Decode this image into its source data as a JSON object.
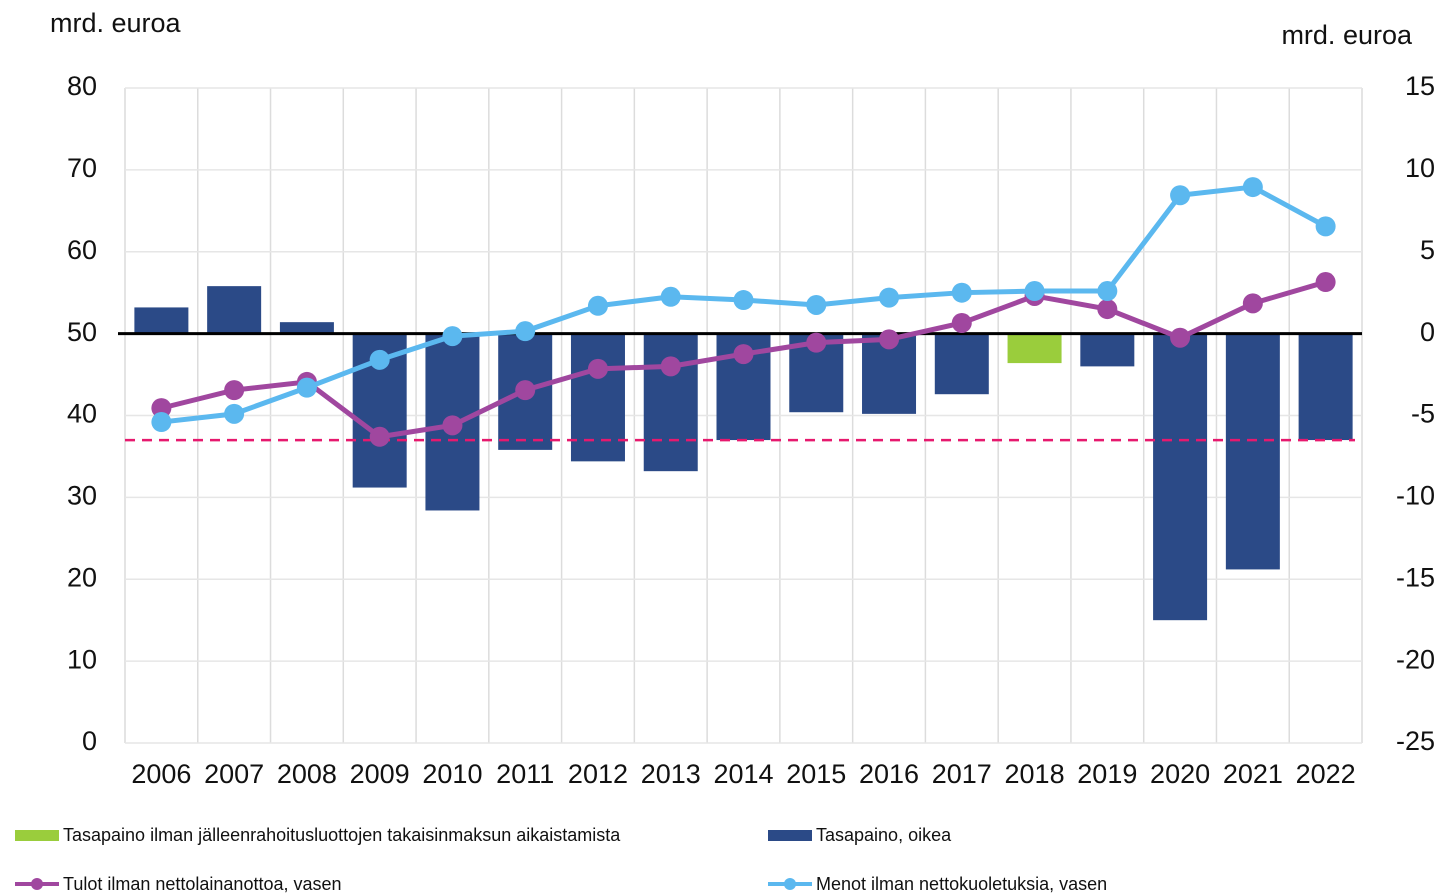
{
  "chart_data": {
    "type": "combo",
    "ylabel": "mrd. euroa",
    "y2label": "mrd. euroa",
    "categories": [
      "2006",
      "2007",
      "2008",
      "2009",
      "2010",
      "2011",
      "2012",
      "2013",
      "2014",
      "2015",
      "2016",
      "2017",
      "2018",
      "2019",
      "2020",
      "2021",
      "2022"
    ],
    "ylim": [
      0,
      80
    ],
    "yticks": [
      0,
      10,
      20,
      30,
      40,
      50,
      60,
      70,
      80
    ],
    "y2lim": [
      -25,
      15
    ],
    "y2ticks": [
      -25,
      -20,
      -15,
      -10,
      -5,
      0,
      5,
      10,
      15
    ],
    "grid": true,
    "reference_line": {
      "value": -6.5,
      "axis": "y2",
      "color": "#e6196e"
    },
    "series": [
      {
        "name": "Tasapaino ilman jälleenrahoitusluottojen takaisinmaksun aikaistamista",
        "type": "bar",
        "axis": "y2",
        "color": "#9acd3c",
        "values": [
          null,
          null,
          null,
          null,
          null,
          null,
          null,
          null,
          null,
          null,
          null,
          null,
          -1.8,
          null,
          null,
          null,
          null
        ]
      },
      {
        "name": "Tasapaino, oikea",
        "type": "bar",
        "axis": "y2",
        "color": "#2b4a87",
        "values": [
          1.6,
          2.9,
          0.7,
          -9.4,
          -10.8,
          -7.1,
          -7.8,
          -8.4,
          -6.5,
          -4.8,
          -4.9,
          -3.7,
          null,
          -2.0,
          -17.5,
          -14.4,
          -6.5
        ]
      },
      {
        "name": "Tulot ilman nettolainanottoa, vasen",
        "type": "line",
        "axis": "y",
        "color": "#a0479f",
        "values": [
          40.9,
          43.1,
          44.1,
          37.4,
          38.8,
          43.1,
          45.7,
          46.0,
          47.5,
          48.9,
          49.3,
          51.3,
          54.6,
          53.0,
          49.5,
          53.7,
          56.3
        ]
      },
      {
        "name": "Menot ilman nettokuoletuksia, vasen",
        "type": "line",
        "axis": "y",
        "color": "#5bb8ef",
        "values": [
          39.2,
          40.2,
          43.4,
          46.8,
          49.7,
          50.3,
          53.4,
          54.5,
          54.1,
          53.5,
          54.4,
          55.0,
          55.2,
          55.2,
          66.9,
          67.9,
          63.1
        ]
      }
    ]
  }
}
